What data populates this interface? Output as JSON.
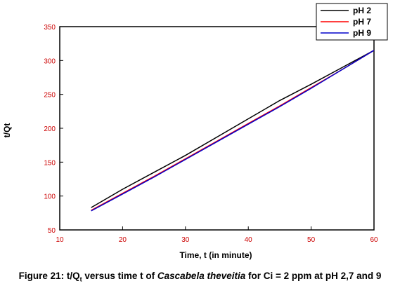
{
  "chart_data": {
    "type": "line",
    "title": "",
    "xlabel": "Time, t (in minute)",
    "ylabel": "t/Qt",
    "xlim": [
      10,
      60
    ],
    "ylim": [
      50,
      350
    ],
    "x_ticks": [
      10,
      20,
      30,
      40,
      50,
      60
    ],
    "y_ticks": [
      50,
      100,
      150,
      200,
      250,
      300,
      350
    ],
    "grid": false,
    "legend_position": "top-right",
    "series": [
      {
        "name": "pH 2",
        "color": "#000000",
        "x": [
          15,
          20,
          25,
          30,
          35,
          40,
          45,
          50,
          55,
          60
        ],
        "y": [
          83,
          110,
          135,
          160,
          187,
          214,
          241,
          265,
          290,
          315
        ]
      },
      {
        "name": "pH 7",
        "color": "#ff0000",
        "x": [
          15,
          20,
          25,
          30,
          35,
          40,
          45,
          50,
          55,
          60
        ],
        "y": [
          79,
          104,
          129,
          155,
          181,
          207,
          233,
          260,
          287,
          315
        ]
      },
      {
        "name": "pH 9",
        "color": "#0000cc",
        "x": [
          15,
          20,
          25,
          30,
          35,
          40,
          45,
          50,
          55,
          60
        ],
        "y": [
          78,
          103,
          128,
          154,
          180,
          206,
          232,
          259,
          287,
          315
        ]
      }
    ]
  },
  "caption": {
    "prefix": "Figure 21: t/Q",
    "sub": "t",
    "middle": " versus time t of ",
    "species": "Cascabela theveitia",
    "suffix": " for Ci = 2 ppm at pH 2,7 and 9"
  }
}
